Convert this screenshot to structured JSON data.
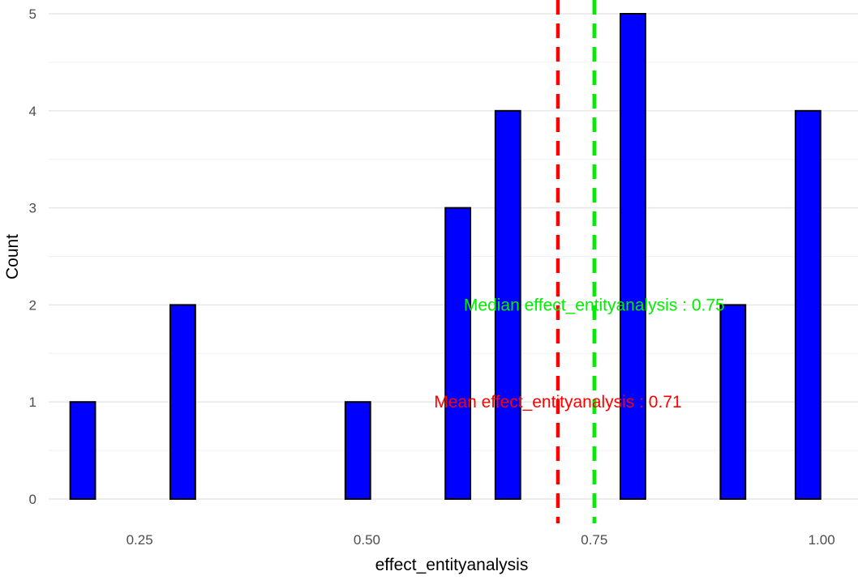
{
  "chart_data": {
    "type": "bar",
    "subtype": "histogram",
    "title": "",
    "xlabel": "effect_entityanalysis",
    "ylabel": "Count",
    "xlim": [
      0.15,
      1.04
    ],
    "ylim": [
      0,
      5
    ],
    "x_ticks": [
      "0.25",
      "0.50",
      "0.75",
      "1.00"
    ],
    "x_tick_values": [
      0.25,
      0.5,
      0.75,
      1.0
    ],
    "y_ticks": [
      "0",
      "1",
      "2",
      "3",
      "4",
      "5"
    ],
    "y_tick_values": [
      0,
      1,
      2,
      3,
      4,
      5
    ],
    "bin_width": 0.0275,
    "bins": [
      {
        "center": 0.1875,
        "count": 1
      },
      {
        "center": 0.215,
        "count": 0
      },
      {
        "center": 0.2425,
        "count": 0
      },
      {
        "center": 0.27,
        "count": 0
      },
      {
        "center": 0.2975,
        "count": 2
      },
      {
        "center": 0.325,
        "count": 0
      },
      {
        "center": 0.3525,
        "count": 0
      },
      {
        "center": 0.38,
        "count": 0
      },
      {
        "center": 0.4075,
        "count": 0
      },
      {
        "center": 0.435,
        "count": 0
      },
      {
        "center": 0.4625,
        "count": 0
      },
      {
        "center": 0.49,
        "count": 1
      },
      {
        "center": 0.5175,
        "count": 0
      },
      {
        "center": 0.545,
        "count": 0
      },
      {
        "center": 0.5725,
        "count": 0
      },
      {
        "center": 0.6,
        "count": 3
      },
      {
        "center": 0.6275,
        "count": 0
      },
      {
        "center": 0.655,
        "count": 4
      },
      {
        "center": 0.6825,
        "count": 0
      },
      {
        "center": 0.71,
        "count": 0
      },
      {
        "center": 0.7375,
        "count": 0
      },
      {
        "center": 0.765,
        "count": 0
      },
      {
        "center": 0.7925,
        "count": 5
      },
      {
        "center": 0.82,
        "count": 0
      },
      {
        "center": 0.8475,
        "count": 0
      },
      {
        "center": 0.875,
        "count": 0
      },
      {
        "center": 0.9025,
        "count": 2
      },
      {
        "center": 0.93,
        "count": 0
      },
      {
        "center": 0.9575,
        "count": 0
      },
      {
        "center": 0.985,
        "count": 4
      }
    ],
    "bar_fill": "#0000ff",
    "bar_outline": "#000000",
    "grid": true,
    "legend": "none",
    "reference_lines": [
      {
        "name": "mean",
        "value": 0.71,
        "color": "#ff0000",
        "style": "dashed"
      },
      {
        "name": "median",
        "value": 0.75,
        "color": "#00ee00",
        "style": "dashed"
      }
    ],
    "annotations": [
      {
        "text": "Median effect_entityanalysis : 0.75",
        "x": 0.75,
        "y": 2,
        "color": "#00ee00"
      },
      {
        "text": "Mean effect_entityanalysis : 0.71",
        "x": 0.71,
        "y": 1,
        "color": "#ff0000"
      }
    ]
  }
}
